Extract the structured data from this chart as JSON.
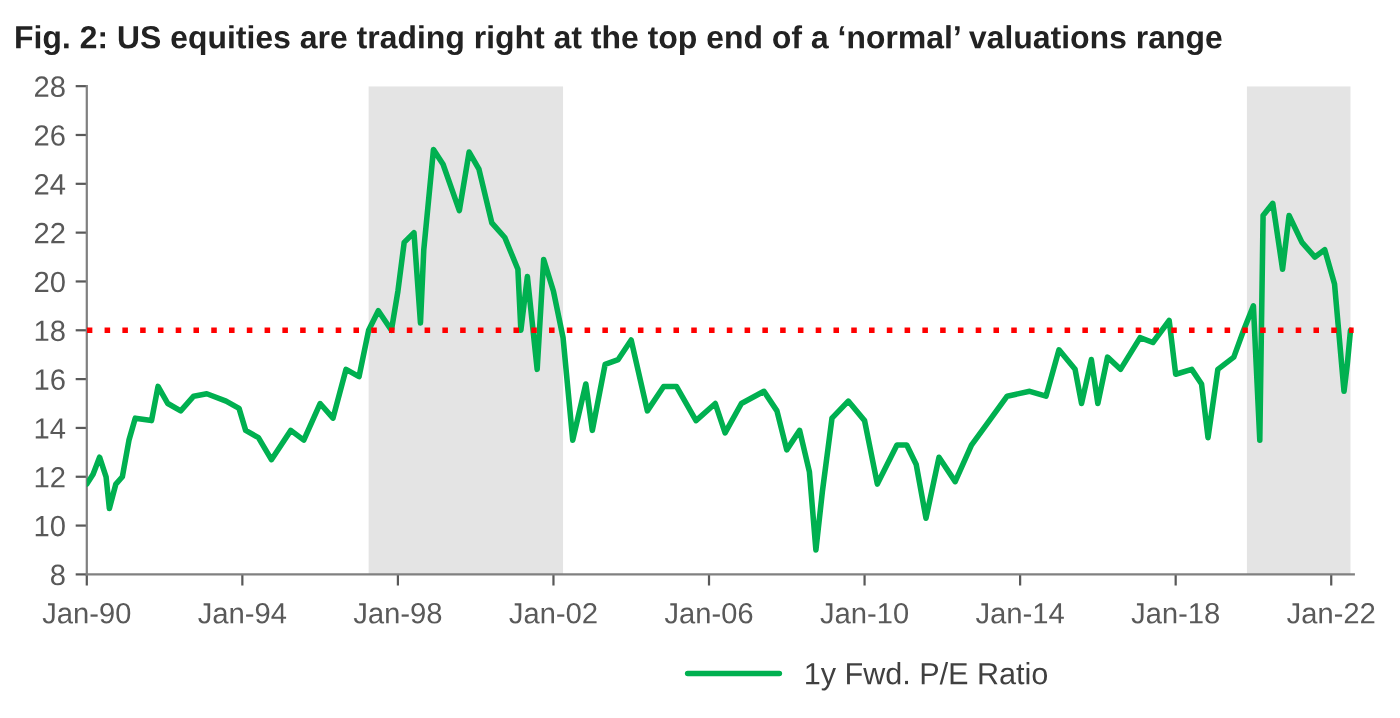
{
  "chart_data": {
    "type": "line",
    "title": "Fig. 2: US equities are trading right at the top end of a ‘normal’ valuations range",
    "xlim": [
      "1990-01",
      "2022-08"
    ],
    "xticks": [
      {
        "value": "1990-01",
        "label": "Jan-90"
      },
      {
        "value": "1994-01",
        "label": "Jan-94"
      },
      {
        "value": "1998-01",
        "label": "Jan-98"
      },
      {
        "value": "2002-01",
        "label": "Jan-02"
      },
      {
        "value": "2006-01",
        "label": "Jan-06"
      },
      {
        "value": "2010-01",
        "label": "Jan-10"
      },
      {
        "value": "2014-01",
        "label": "Jan-14"
      },
      {
        "value": "2018-01",
        "label": "Jan-18"
      },
      {
        "value": "2022-01",
        "label": "Jan-22"
      }
    ],
    "ylim": [
      8,
      28
    ],
    "yticks": [
      8,
      10,
      12,
      14,
      16,
      18,
      20,
      22,
      24,
      26,
      28
    ],
    "grid": false,
    "legend": "bottom",
    "marker": "none",
    "line_style": "solid",
    "ref_lines": [
      {
        "axis": "y",
        "value": 18,
        "color": "#ff0000",
        "line_style": "dotted"
      }
    ],
    "bands": [
      {
        "axis": "x",
        "from": "1997-04",
        "to": "2002-04",
        "color": "#e4e4e4"
      },
      {
        "axis": "x",
        "from": "2019-11",
        "to": "2022-07",
        "color": "#e4e4e4"
      }
    ],
    "series": [
      {
        "name": "1y Fwd. P/E Ratio",
        "color": "#00b050",
        "x": [
          "1990-01",
          "1990-03",
          "1990-05",
          "1990-07",
          "1990-08",
          "1990-10",
          "1990-12",
          "1991-02",
          "1991-04",
          "1991-09",
          "1991-11",
          "1992-02",
          "1992-06",
          "1992-10",
          "1993-02",
          "1993-08",
          "1993-12",
          "1994-02",
          "1994-06",
          "1994-10",
          "1995-04",
          "1995-08",
          "1996-01",
          "1996-05",
          "1996-09",
          "1997-01",
          "1997-04",
          "1997-07",
          "1997-11",
          "1998-01",
          "1998-03",
          "1998-06",
          "1998-08",
          "1998-09",
          "1998-12",
          "1999-03",
          "1999-08",
          "1999-11",
          "2000-02",
          "2000-06",
          "2000-10",
          "2001-02",
          "2001-03",
          "2001-05",
          "2001-08",
          "2001-10",
          "2002-01",
          "2002-04",
          "2002-07",
          "2002-11",
          "2003-01",
          "2003-05",
          "2003-09",
          "2004-01",
          "2004-06",
          "2004-11",
          "2005-03",
          "2005-09",
          "2006-03",
          "2006-06",
          "2006-11",
          "2007-06",
          "2007-10",
          "2008-01",
          "2008-05",
          "2008-08",
          "2008-10",
          "2008-12",
          "2009-03",
          "2009-08",
          "2010-01",
          "2010-05",
          "2010-11",
          "2011-02",
          "2011-05",
          "2011-08",
          "2011-12",
          "2012-05",
          "2012-10",
          "2013-03",
          "2013-09",
          "2014-04",
          "2014-09",
          "2015-01",
          "2015-06",
          "2015-08",
          "2015-11",
          "2016-01",
          "2016-04",
          "2016-08",
          "2017-02",
          "2017-06",
          "2017-11",
          "2018-01",
          "2018-06",
          "2018-09",
          "2018-11",
          "2019-02",
          "2019-07",
          "2019-10",
          "2020-01",
          "2020-03",
          "2020-04",
          "2020-07",
          "2020-10",
          "2020-12",
          "2021-04",
          "2021-08",
          "2021-11",
          "2022-02",
          "2022-05",
          "2022-06",
          "2022-07"
        ],
        "values": [
          11.7,
          12.1,
          12.8,
          12.0,
          10.7,
          11.7,
          12.0,
          13.5,
          14.4,
          14.3,
          15.7,
          15.0,
          14.7,
          15.3,
          15.4,
          15.1,
          14.8,
          13.9,
          13.6,
          12.7,
          13.9,
          13.5,
          15.0,
          14.4,
          16.4,
          16.1,
          18.0,
          18.8,
          18.0,
          19.6,
          21.6,
          22.0,
          18.3,
          21.3,
          25.4,
          24.8,
          22.9,
          25.3,
          24.6,
          22.4,
          21.8,
          20.5,
          18.0,
          20.2,
          16.4,
          20.9,
          19.6,
          17.7,
          13.5,
          15.8,
          13.9,
          16.6,
          16.8,
          17.6,
          14.7,
          15.7,
          15.7,
          14.3,
          15.0,
          13.8,
          15.0,
          15.5,
          14.7,
          13.1,
          13.9,
          12.2,
          9.0,
          11.4,
          14.4,
          15.1,
          14.3,
          11.7,
          13.3,
          13.3,
          12.5,
          10.3,
          12.8,
          11.8,
          13.3,
          14.2,
          15.3,
          15.5,
          15.3,
          17.2,
          16.4,
          15.0,
          16.8,
          15.0,
          16.9,
          16.4,
          17.7,
          17.5,
          18.4,
          16.2,
          16.4,
          15.8,
          13.6,
          16.4,
          16.9,
          18.0,
          19.0,
          13.5,
          22.7,
          23.2,
          20.5,
          22.7,
          21.6,
          21.0,
          21.3,
          19.9,
          15.5,
          16.6,
          18.0
        ]
      }
    ]
  }
}
